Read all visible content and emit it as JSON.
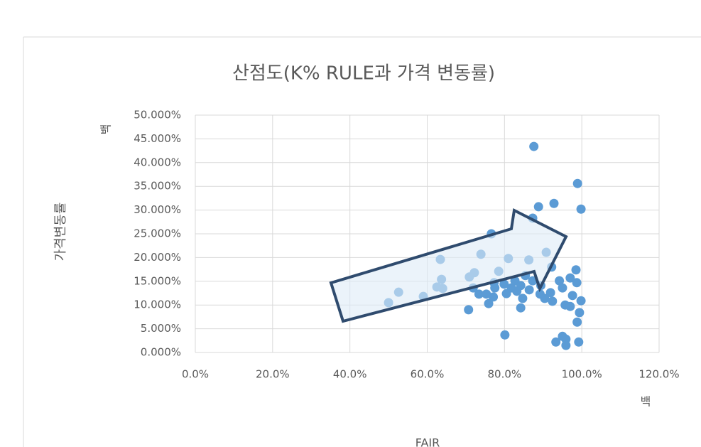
{
  "chart_data": {
    "type": "scatter",
    "title": "산점도(K% RULE과 가격 변동률)",
    "x_label": "FAIR",
    "y_label": "가격변동률",
    "annotations": [
      "백",
      "백"
    ],
    "x": [
      87.6,
      98.9,
      92.8,
      88.8,
      99.8,
      87.3,
      76.6,
      90.8,
      73.9,
      63.4,
      81.0,
      86.3,
      98.5,
      78.5,
      72.2,
      70.9,
      63.7,
      85.4,
      92.2,
      97.0,
      98.7,
      94.2,
      77.3,
      82.7,
      62.5,
      64.0,
      71.9,
      77.5,
      79.9,
      84.2,
      89.4,
      95.0,
      73.4,
      75.3,
      77.1,
      80.5,
      86.4,
      89.2,
      91.9,
      52.6,
      59.0,
      84.7,
      90.4,
      97.6,
      92.4,
      99.8,
      50.0,
      75.9,
      95.7,
      97.0,
      84.2,
      70.7,
      99.4,
      98.8,
      80.1,
      95.0,
      95.9,
      93.3,
      99.2,
      95.9,
      81.8,
      83.2,
      87.3
    ],
    "values": [
      43.4,
      35.6,
      31.4,
      30.7,
      30.2,
      28.3,
      25.0,
      21.1,
      20.7,
      19.6,
      19.8,
      19.5,
      17.4,
      17.1,
      16.8,
      15.9,
      15.4,
      16.2,
      18.0,
      15.7,
      14.7,
      15.1,
      14.7,
      15.1,
      13.8,
      13.5,
      13.6,
      13.6,
      14.4,
      14.1,
      14.1,
      13.6,
      12.3,
      12.3,
      11.7,
      12.4,
      13.2,
      12.3,
      12.6,
      12.7,
      11.8,
      11.4,
      11.4,
      12.0,
      10.8,
      10.9,
      10.5,
      10.3,
      10.0,
      9.7,
      9.4,
      9.0,
      8.4,
      6.4,
      3.7,
      3.4,
      2.8,
      2.2,
      2.2,
      1.5,
      13.6,
      12.9,
      15.1
    ],
    "color": "#5b9bd5",
    "xlim": [
      0,
      120
    ],
    "ylim": [
      0,
      50
    ],
    "xticks": [
      {
        "value": 0,
        "label": "0.0%"
      },
      {
        "value": 20,
        "label": "20.0%"
      },
      {
        "value": 40,
        "label": "40.0%"
      },
      {
        "value": 60,
        "label": "60.0%"
      },
      {
        "value": 80,
        "label": "80.0%"
      },
      {
        "value": 100,
        "label": "100.0%"
      },
      {
        "value": 120,
        "label": "120.0%"
      }
    ],
    "yticks": [
      {
        "value": 0,
        "label": "0.000%"
      },
      {
        "value": 5,
        "label": "5.000%"
      },
      {
        "value": 10,
        "label": "10.000%"
      },
      {
        "value": 15,
        "label": "15.000%"
      },
      {
        "value": 20,
        "label": "20.000%"
      },
      {
        "value": 25,
        "label": "25.000%"
      },
      {
        "value": 30,
        "label": "30.000%"
      },
      {
        "value": 35,
        "label": "35.000%"
      },
      {
        "value": 40,
        "label": "40.000%"
      },
      {
        "value": 45,
        "label": "45.000%"
      },
      {
        "value": 50,
        "label": "50.000%"
      }
    ],
    "grid": true
  }
}
